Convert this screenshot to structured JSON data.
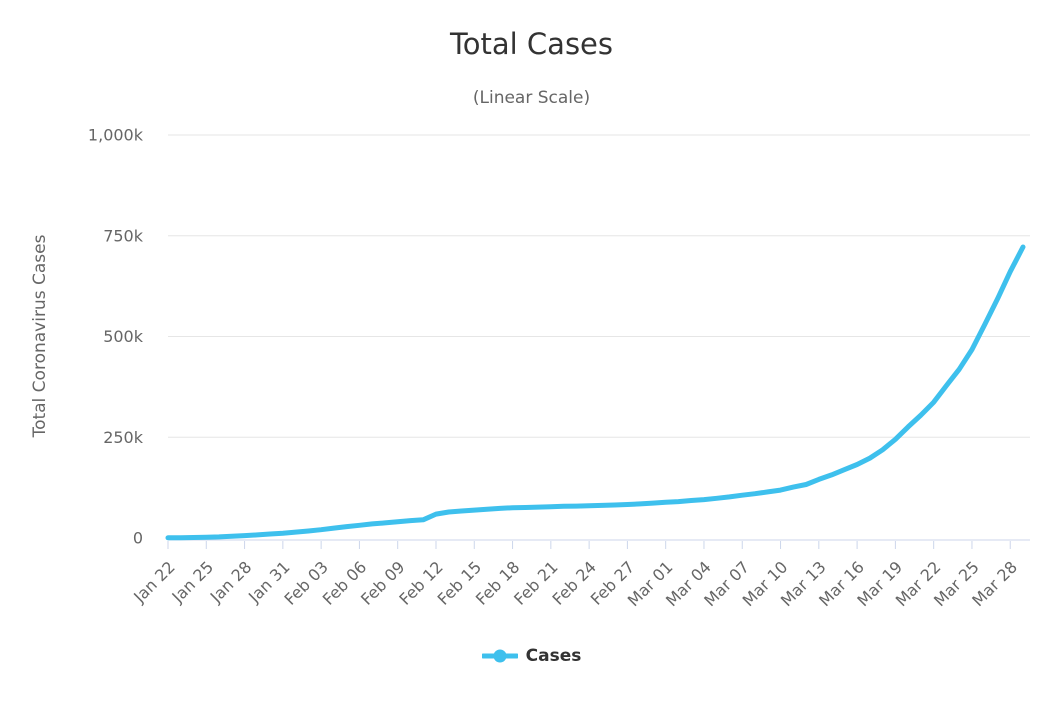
{
  "chart": {
    "title": "Total Cases",
    "subtitle": "(Linear Scale)",
    "y_axis_title": "Total Coronavirus Cases",
    "legend": {
      "label": "Cases"
    }
  },
  "colors": {
    "series": "#3EC0ED",
    "title": "#333333",
    "subtitle": "#666666",
    "axis_label": "#666666",
    "gridline": "#E6E6E6",
    "axis_line": "#CCD6EB",
    "background": "#FFFFFF"
  },
  "chart_data": {
    "type": "line",
    "title": "Total Cases",
    "subtitle": "(Linear Scale)",
    "xlabel": "",
    "ylabel": "Total Coronavirus Cases",
    "ylim": [
      0,
      1000000
    ],
    "grid": true,
    "legend_position": "bottom",
    "ytick_values": [
      0,
      250000,
      500000,
      750000,
      1000000
    ],
    "ytick_labels": [
      "0",
      "250k",
      "500k",
      "750k",
      "1,000k"
    ],
    "xtick_every": 3,
    "xtick_labels": [
      "Jan 22",
      "Jan 25",
      "Jan 28",
      "Jan 31",
      "Feb 03",
      "Feb 06",
      "Feb 09",
      "Feb 12",
      "Feb 15",
      "Feb 18",
      "Feb 21",
      "Feb 24",
      "Feb 27",
      "Mar 01",
      "Mar 04",
      "Mar 07",
      "Mar 10",
      "Mar 13",
      "Mar 16",
      "Mar 19",
      "Mar 22",
      "Mar 25",
      "Mar 28"
    ],
    "series": [
      {
        "name": "Cases",
        "color": "#3EC0ED",
        "x": [
          "Jan 22",
          "Jan 23",
          "Jan 24",
          "Jan 25",
          "Jan 26",
          "Jan 27",
          "Jan 28",
          "Jan 29",
          "Jan 30",
          "Jan 31",
          "Feb 01",
          "Feb 02",
          "Feb 03",
          "Feb 04",
          "Feb 05",
          "Feb 06",
          "Feb 07",
          "Feb 08",
          "Feb 09",
          "Feb 10",
          "Feb 11",
          "Feb 12",
          "Feb 13",
          "Feb 14",
          "Feb 15",
          "Feb 16",
          "Feb 17",
          "Feb 18",
          "Feb 19",
          "Feb 20",
          "Feb 21",
          "Feb 22",
          "Feb 23",
          "Feb 24",
          "Feb 25",
          "Feb 26",
          "Feb 27",
          "Feb 28",
          "Feb 29",
          "Mar 01",
          "Mar 02",
          "Mar 03",
          "Mar 04",
          "Mar 05",
          "Mar 06",
          "Mar 07",
          "Mar 08",
          "Mar 09",
          "Mar 10",
          "Mar 11",
          "Mar 12",
          "Mar 13",
          "Mar 14",
          "Mar 15",
          "Mar 16",
          "Mar 17",
          "Mar 18",
          "Mar 19",
          "Mar 20",
          "Mar 21",
          "Mar 22",
          "Mar 23",
          "Mar 24",
          "Mar 25",
          "Mar 26",
          "Mar 27",
          "Mar 28",
          "Mar 29"
        ],
        "values": [
          580,
          845,
          1317,
          2015,
          2800,
          4581,
          6058,
          7813,
          9823,
          11950,
          14553,
          17391,
          20630,
          24545,
          28266,
          31439,
          34876,
          37552,
          40553,
          43099,
          45134,
          59287,
          64438,
          67100,
          69197,
          71329,
          73332,
          75184,
          75700,
          76677,
          77673,
          78651,
          79205,
          80087,
          80828,
          81820,
          83112,
          84615,
          86604,
          88585,
          90443,
          93016,
          95314,
          98425,
          102050,
          106099,
          109991,
          114381,
          118948,
          126214,
          132758,
          145483,
          156653,
          169593,
          182490,
          198234,
          218822,
          244933,
          275597,
          305036,
          336953,
          378287,
          418678,
          467653,
          529591,
          593291,
          660706,
          722196
        ]
      }
    ]
  }
}
